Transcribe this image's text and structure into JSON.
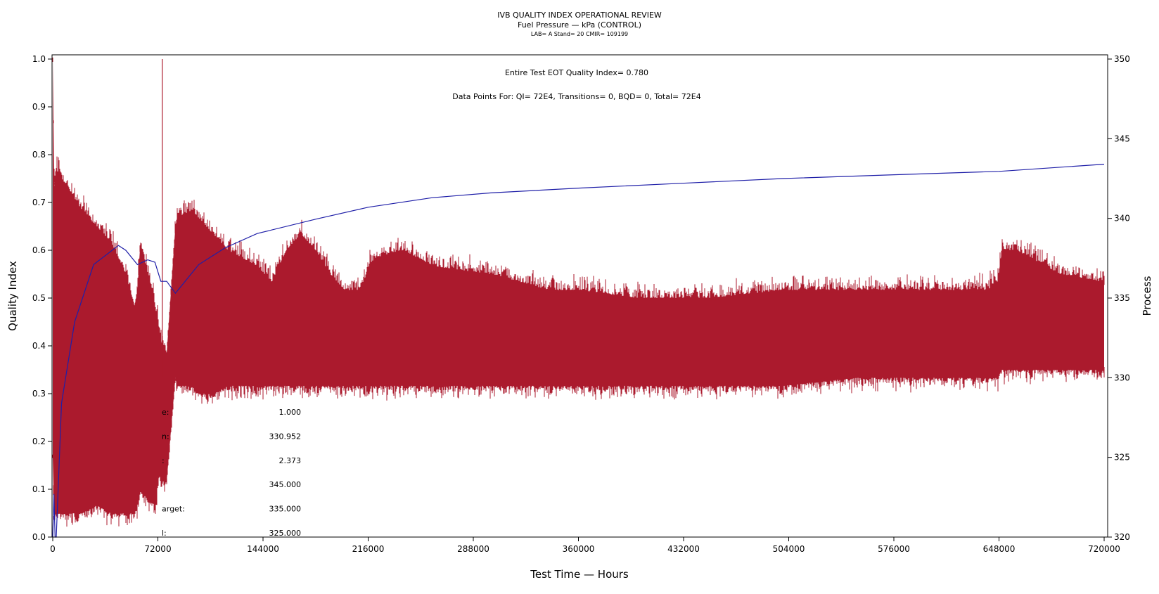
{
  "header": {
    "title": "IVB QUALITY INDEX OPERATIONAL REVIEW",
    "subtitle": "Fuel Pressure — kPa (CONTROL)",
    "details": "LAB= A Stand= 20 CMIR= 109199"
  },
  "annotations": {
    "quality_index": "Entire Test EOT Quality Index=   0.780",
    "data_points": "Data Points For: QI=  72E4, Transitions=     0, BQD=     0, Total=  72E4"
  },
  "stats": [
    {
      "label": "e:",
      "value": "1.000"
    },
    {
      "label": "n:",
      "value": "330.952"
    },
    {
      "label": ":",
      "value": "2.373"
    },
    {
      "label": "",
      "value": "345.000"
    },
    {
      "label": "arget:",
      "value": "335.000"
    },
    {
      "label": "l:",
      "value": "325.000"
    }
  ],
  "colors": {
    "process_fill": "#ab1a2d",
    "quality_line": "#1f1fa8",
    "axis": "#000000"
  },
  "chart_data": {
    "type": "line",
    "title": "IVB QUALITY INDEX OPERATIONAL REVIEW",
    "xlabel": "Test Time — Hours",
    "ylabel": "Quality Index",
    "y2label": "Process",
    "xlim": [
      0,
      720000
    ],
    "ylim": [
      0.0,
      1.0
    ],
    "y2lim": [
      320,
      350
    ],
    "x_ticks": [
      "0",
      "72000",
      "144000",
      "216000",
      "288000",
      "360000",
      "432000",
      "504000",
      "576000",
      "648000",
      "720000"
    ],
    "y_ticks": [
      "0.0",
      "0.1",
      "0.2",
      "0.3",
      "0.4",
      "0.5",
      "0.6",
      "0.7",
      "0.8",
      "0.9",
      "1.0"
    ],
    "y2_ticks": [
      "320",
      "325",
      "330",
      "335",
      "340",
      "345",
      "350"
    ],
    "grid": false,
    "series": [
      {
        "axis": "right",
        "style": "band",
        "x": [
          0,
          1000,
          2000,
          10000,
          20000,
          30000,
          40000,
          50000,
          56000,
          58000,
          60000,
          64000,
          70000,
          73000,
          75000,
          78000,
          84000,
          85000,
          95000,
          100000,
          110000,
          120000,
          140000,
          150000,
          160000,
          170000,
          180000,
          190000,
          200000,
          210000,
          220000,
          240000,
          260000,
          300000,
          340000,
          360000,
          400000,
          450000,
          500000,
          550000,
          600000,
          640000,
          647000,
          650000,
          660000,
          670000,
          690000,
          720000
        ],
        "high": [
          350,
          342,
          343,
          342,
          340.5,
          339.5,
          338.5,
          336.5,
          334.5,
          335.5,
          338.5,
          337,
          334.5,
          333,
          332,
          331.5,
          339.5,
          340,
          340.5,
          340,
          339,
          338,
          337,
          336,
          338,
          339,
          338,
          336.5,
          335.5,
          335.5,
          337.5,
          338,
          337,
          336.5,
          335.5,
          335.5,
          335,
          335,
          335.5,
          335.5,
          335.5,
          335.5,
          336,
          338,
          338,
          337.5,
          336.5,
          336
        ],
        "low": [
          325,
          321,
          321.5,
          321.5,
          321.5,
          322,
          321.5,
          321.5,
          321.5,
          322,
          323,
          322.5,
          322,
          324,
          323.5,
          323.5,
          330,
          329.5,
          329.5,
          329,
          329,
          329.5,
          329.5,
          329.5,
          329.5,
          329.5,
          329.5,
          329.5,
          329.5,
          329.5,
          329.5,
          329.5,
          329.5,
          329.5,
          329.5,
          329.5,
          329.5,
          329.5,
          329.5,
          330,
          330,
          330,
          330,
          330.5,
          330.5,
          330.5,
          330.5,
          330.5
        ]
      },
      {
        "axis": "right",
        "style": "spike",
        "x": [
          75000
        ],
        "high": [
          350
        ],
        "low": [
          330
        ]
      },
      {
        "axis": "left",
        "style": "line",
        "x": [
          0,
          800,
          1600,
          2400,
          6000,
          15000,
          28000,
          45000,
          50000,
          58000,
          65000,
          70000,
          74000,
          78000,
          84000,
          100000,
          118000,
          140000,
          180000,
          216000,
          260000,
          300000,
          360000,
          430000,
          500000,
          576000,
          648000,
          720000
        ],
        "y": [
          0.0,
          0.09,
          0.0,
          0.0,
          0.28,
          0.45,
          0.57,
          0.61,
          0.6,
          0.57,
          0.58,
          0.575,
          0.535,
          0.535,
          0.51,
          0.57,
          0.605,
          0.635,
          0.665,
          0.69,
          0.71,
          0.72,
          0.73,
          0.74,
          0.75,
          0.758,
          0.765,
          0.78
        ]
      }
    ]
  }
}
